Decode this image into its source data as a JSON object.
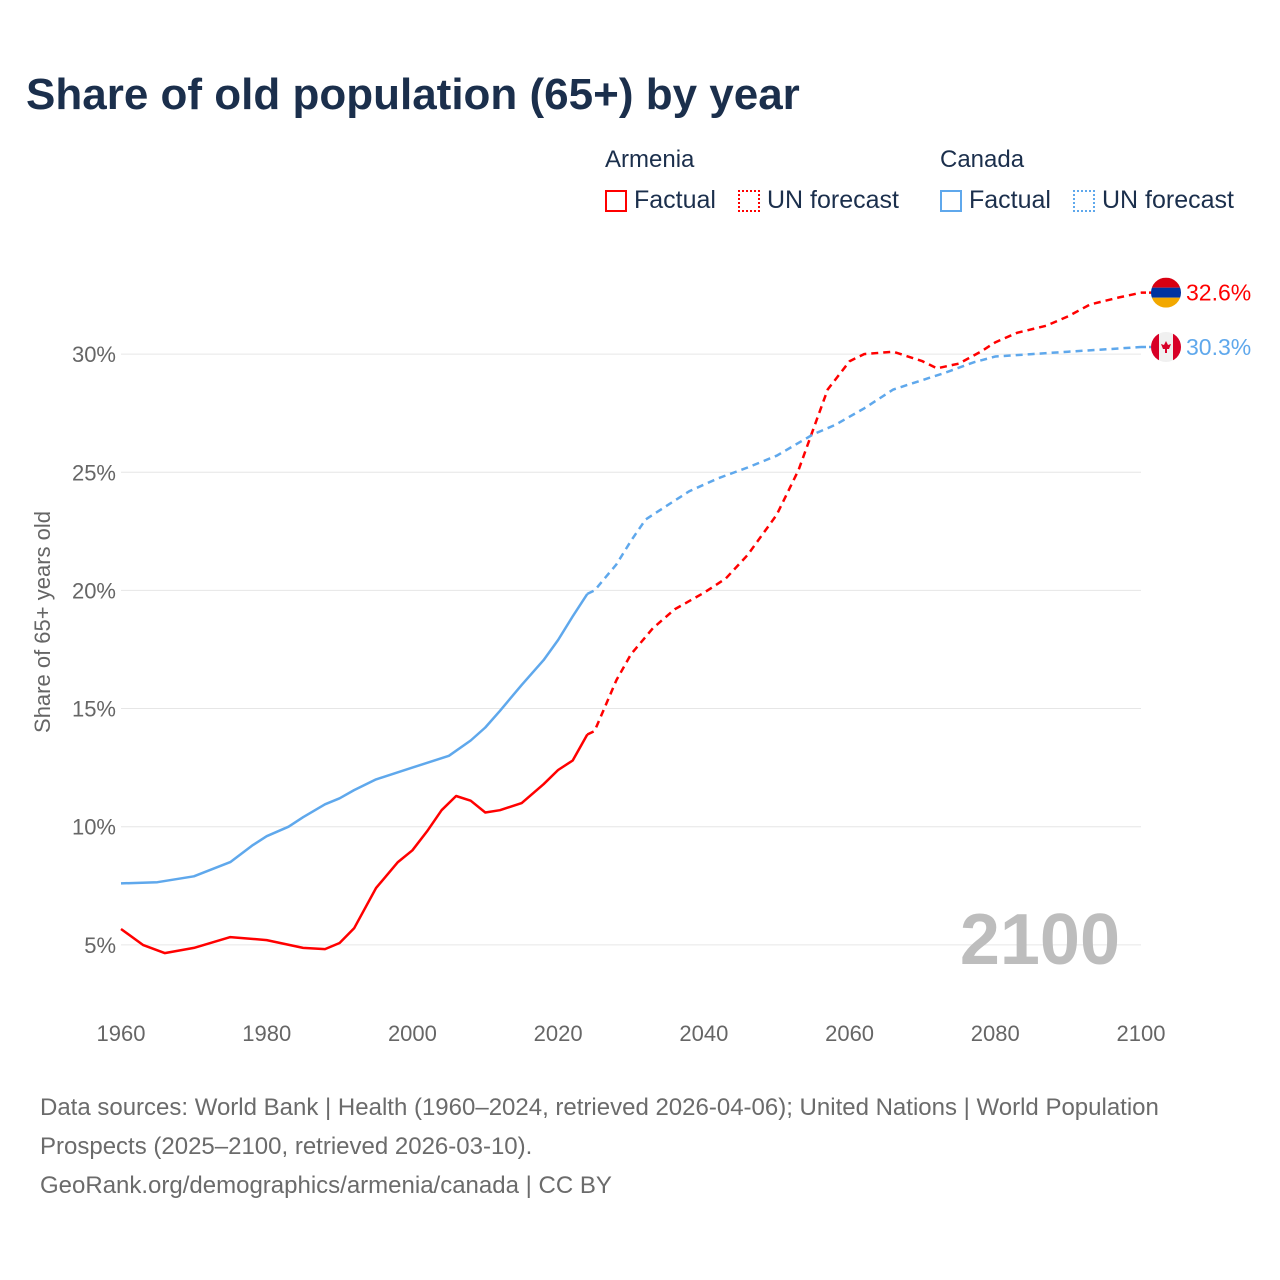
{
  "title": "Share of old population (65+) by year",
  "legend": {
    "groups": [
      {
        "name": "Armenia",
        "color": "#ff0000",
        "items": [
          "Factual",
          "UN forecast"
        ]
      },
      {
        "name": "Canada",
        "color": "#5fa8ec",
        "items": [
          "Factual",
          "UN forecast"
        ]
      }
    ]
  },
  "chart_data": {
    "type": "line",
    "title": "Share of old population (65+) by year",
    "xlabel": "",
    "ylabel": "Share of 65+ years old",
    "xlim": [
      1960,
      2100
    ],
    "ylim": [
      0,
      33
    ],
    "x_ticks": [
      "1960",
      "1980",
      "2000",
      "2020",
      "2040",
      "2060",
      "2080",
      "2100"
    ],
    "y_ticks": [
      {
        "v": 5,
        "label": "5%"
      },
      {
        "v": 10,
        "label": "10%"
      },
      {
        "v": 15,
        "label": "15%"
      },
      {
        "v": 20,
        "label": "20%"
      },
      {
        "v": 25,
        "label": "25%"
      },
      {
        "v": 30,
        "label": "30%"
      }
    ],
    "grid": true,
    "year_watermark": "2100",
    "series": [
      {
        "name": "Armenia",
        "color": "#ff0000",
        "end_label": "32.6%",
        "flag": "armenia-flag",
        "factual": [
          [
            1960,
            5.67
          ],
          [
            1963,
            5.0
          ],
          [
            1966,
            4.65
          ],
          [
            1970,
            4.87
          ],
          [
            1975,
            5.33
          ],
          [
            1980,
            5.2
          ],
          [
            1985,
            4.87
          ],
          [
            1988,
            4.82
          ],
          [
            1990,
            5.08
          ],
          [
            1992,
            5.7
          ],
          [
            1995,
            7.4
          ],
          [
            1998,
            8.5
          ],
          [
            2000,
            9.0
          ],
          [
            2002,
            9.8
          ],
          [
            2004,
            10.7
          ],
          [
            2006,
            11.3
          ],
          [
            2008,
            11.1
          ],
          [
            2010,
            10.6
          ],
          [
            2012,
            10.7
          ],
          [
            2015,
            11.0
          ],
          [
            2018,
            11.8
          ],
          [
            2020,
            12.4
          ],
          [
            2022,
            12.8
          ],
          [
            2024,
            13.9
          ]
        ],
        "forecast": [
          [
            2024,
            13.9
          ],
          [
            2025,
            14.05
          ],
          [
            2028,
            16.2
          ],
          [
            2030,
            17.3
          ],
          [
            2033,
            18.4
          ],
          [
            2036,
            19.2
          ],
          [
            2040,
            19.9
          ],
          [
            2043,
            20.5
          ],
          [
            2046,
            21.5
          ],
          [
            2050,
            23.2
          ],
          [
            2053,
            25.1
          ],
          [
            2055,
            26.8
          ],
          [
            2057,
            28.5
          ],
          [
            2060,
            29.7
          ],
          [
            2062,
            30.0
          ],
          [
            2066,
            30.1
          ],
          [
            2070,
            29.7
          ],
          [
            2072,
            29.4
          ],
          [
            2075,
            29.6
          ],
          [
            2078,
            30.1
          ],
          [
            2080,
            30.5
          ],
          [
            2083,
            30.9
          ],
          [
            2087,
            31.2
          ],
          [
            2090,
            31.6
          ],
          [
            2093,
            32.1
          ],
          [
            2097,
            32.4
          ],
          [
            2100,
            32.6
          ]
        ]
      },
      {
        "name": "Canada",
        "color": "#5fa8ec",
        "end_label": "30.3%",
        "flag": "canada-flag",
        "factual": [
          [
            1960,
            7.6
          ],
          [
            1965,
            7.65
          ],
          [
            1970,
            7.9
          ],
          [
            1975,
            8.5
          ],
          [
            1978,
            9.2
          ],
          [
            1980,
            9.6
          ],
          [
            1983,
            10.0
          ],
          [
            1985,
            10.4
          ],
          [
            1988,
            10.95
          ],
          [
            1990,
            11.2
          ],
          [
            1992,
            11.55
          ],
          [
            1995,
            12.0
          ],
          [
            2000,
            12.5
          ],
          [
            2005,
            13.0
          ],
          [
            2008,
            13.65
          ],
          [
            2010,
            14.2
          ],
          [
            2012,
            14.9
          ],
          [
            2015,
            16.0
          ],
          [
            2018,
            17.05
          ],
          [
            2020,
            17.9
          ],
          [
            2022,
            18.9
          ],
          [
            2024,
            19.85
          ]
        ],
        "forecast": [
          [
            2024,
            19.85
          ],
          [
            2025,
            20.0
          ],
          [
            2028,
            21.1
          ],
          [
            2030,
            22.1
          ],
          [
            2032,
            23.0
          ],
          [
            2035,
            23.6
          ],
          [
            2038,
            24.2
          ],
          [
            2042,
            24.75
          ],
          [
            2046,
            25.2
          ],
          [
            2050,
            25.7
          ],
          [
            2055,
            26.6
          ],
          [
            2058,
            27.0
          ],
          [
            2062,
            27.7
          ],
          [
            2066,
            28.5
          ],
          [
            2070,
            28.9
          ],
          [
            2073,
            29.2
          ],
          [
            2077,
            29.65
          ],
          [
            2080,
            29.9
          ],
          [
            2085,
            30.0
          ],
          [
            2090,
            30.1
          ],
          [
            2095,
            30.2
          ],
          [
            2100,
            30.3
          ]
        ]
      }
    ]
  },
  "footer": {
    "sources": "Data sources: World Bank | Health (1960–2024, retrieved 2026-04-06); United Nations | World Population Prospects (2025–2100, retrieved 2026-03-10).",
    "credit": "GeoRank.org/demographics/armenia/canada | CC BY"
  }
}
